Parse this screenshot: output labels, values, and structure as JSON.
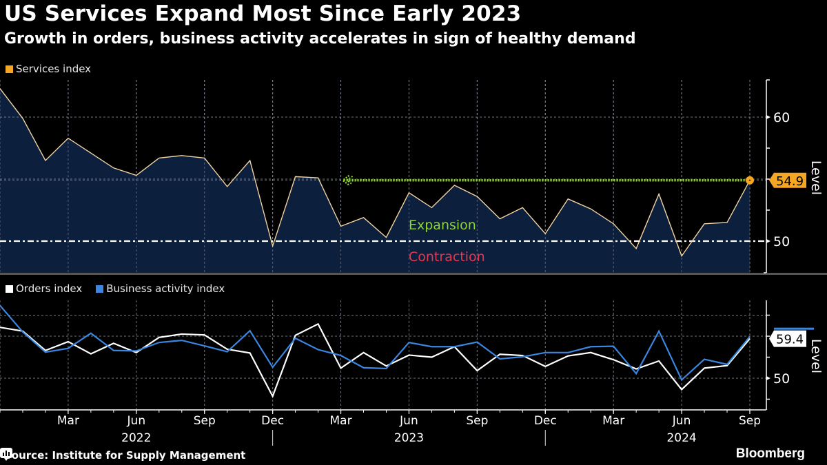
{
  "header": {
    "title": "US Services Expand Most Since Early 2023",
    "subtitle": "Growth in orders, business activity accelerates in sign of healthy demand"
  },
  "footer": {
    "source": "Source: Institute for Supply Management",
    "brand": "Bloomberg",
    "brand_icon": "bloomberg-chart-icon"
  },
  "colors": {
    "services": "#f5a623",
    "services_line": "#f2d3a3",
    "area_fill": "#0c1f3d",
    "orders": "#ffffff",
    "business": "#3a86e0",
    "expansion": "#8fd62f",
    "contraction": "#e8364f"
  },
  "chart_data": [
    {
      "type": "area",
      "title": "Services index",
      "ylabel": "Level",
      "ylim": [
        47.5,
        63.2
      ],
      "yticks": [
        50,
        60
      ],
      "legend": [
        "Services index"
      ],
      "legend_position": "top-left",
      "grid": true,
      "x": [
        "Dec 2021",
        "Jan 2022",
        "Feb 2022",
        "Mar 2022",
        "Apr 2022",
        "May 2022",
        "Jun 2022",
        "Jul 2022",
        "Aug 2022",
        "Sep 2022",
        "Oct 2022",
        "Nov 2022",
        "Dec 2022",
        "Jan 2023",
        "Feb 2023",
        "Mar 2023",
        "Apr 2023",
        "May 2023",
        "Jun 2023",
        "Jul 2023",
        "Aug 2023",
        "Sep 2023",
        "Oct 2023",
        "Nov 2023",
        "Dec 2023",
        "Jan 2024",
        "Feb 2024",
        "Mar 2024",
        "Apr 2024",
        "May 2024",
        "Jun 2024",
        "Jul 2024",
        "Aug 2024",
        "Sep 2024"
      ],
      "series": [
        {
          "name": "Services index",
          "values": [
            62.3,
            59.9,
            56.5,
            58.3,
            57.1,
            55.9,
            55.3,
            56.7,
            56.9,
            56.7,
            54.4,
            56.5,
            49.6,
            55.2,
            55.1,
            51.2,
            51.9,
            50.3,
            53.9,
            52.7,
            54.5,
            53.6,
            51.8,
            52.7,
            50.6,
            53.4,
            52.6,
            51.4,
            49.4,
            53.8,
            48.8,
            51.4,
            51.5,
            54.9
          ]
        }
      ],
      "reference_line": {
        "value": 50,
        "label_above": "Expansion",
        "label_below": "Contraction"
      },
      "highlight_line": {
        "value": 54.9,
        "from": "Mar 2023",
        "to": "Aug 2024"
      },
      "last_value_label": "54.9"
    },
    {
      "type": "line",
      "ylabel": "Level",
      "ylim": [
        43.5,
        67.5
      ],
      "yticks": [
        50
      ],
      "minor_ticks": [
        45,
        55,
        60,
        65
      ],
      "legend": [
        "Orders index",
        "Business activity index"
      ],
      "legend_position": "top-left",
      "grid": true,
      "x": [
        "Dec 2021",
        "Jan 2022",
        "Feb 2022",
        "Mar 2022",
        "Apr 2022",
        "May 2022",
        "Jun 2022",
        "Jul 2022",
        "Aug 2022",
        "Sep 2022",
        "Oct 2022",
        "Nov 2022",
        "Dec 2022",
        "Jan 2023",
        "Feb 2023",
        "Mar 2023",
        "Apr 2023",
        "May 2023",
        "Jun 2023",
        "Jul 2023",
        "Aug 2023",
        "Sep 2023",
        "Oct 2023",
        "Nov 2023",
        "Dec 2023",
        "Jan 2024",
        "Feb 2024",
        "Mar 2024",
        "Apr 2024",
        "May 2024",
        "Jun 2024",
        "Jul 2024",
        "Aug 2024",
        "Sep 2024"
      ],
      "series": [
        {
          "name": "Orders index",
          "values": [
            62.1,
            61.2,
            56.6,
            58.7,
            55.8,
            58.3,
            56.1,
            59.7,
            60.5,
            60.3,
            56.9,
            56.0,
            45.7,
            60.2,
            62.9,
            52.4,
            56.1,
            52.9,
            55.5,
            55.0,
            57.5,
            51.8,
            55.7,
            55.4,
            52.8,
            55.3,
            56.1,
            54.4,
            52.2,
            54.1,
            47.3,
            52.4,
            53.0,
            59.4
          ]
        },
        {
          "name": "Business activity index",
          "values": [
            67.3,
            61.0,
            56.2,
            57.1,
            60.7,
            56.6,
            56.5,
            58.5,
            59.0,
            57.7,
            56.3,
            61.3,
            52.6,
            59.5,
            56.8,
            55.4,
            52.5,
            52.3,
            58.5,
            57.5,
            57.5,
            58.6,
            54.6,
            55.1,
            56.1,
            56.1,
            57.5,
            57.6,
            51.1,
            61.2,
            49.6,
            54.5,
            53.3,
            59.9
          ]
        }
      ],
      "last_value_label": "59.4"
    }
  ],
  "x_axis": {
    "month_labels": [
      {
        "label": "Mar",
        "at": "Mar 2022"
      },
      {
        "label": "Jun",
        "at": "Jun 2022"
      },
      {
        "label": "Sep",
        "at": "Sep 2022"
      },
      {
        "label": "Dec",
        "at": "Dec 2022"
      },
      {
        "label": "Mar",
        "at": "Mar 2023"
      },
      {
        "label": "Jun",
        "at": "Jun 2023"
      },
      {
        "label": "Sep",
        "at": "Sep 2023"
      },
      {
        "label": "Dec",
        "at": "Dec 2023"
      },
      {
        "label": "Mar",
        "at": "Mar 2024"
      },
      {
        "label": "Jun",
        "at": "Jun 2024"
      },
      {
        "label": "Sep",
        "at": "Sep 2024"
      }
    ],
    "year_labels": [
      {
        "label": "2022",
        "at": "Jun 2022"
      },
      {
        "label": "2023",
        "at": "Jun 2023"
      },
      {
        "label": "2024",
        "at": "Jun 2024"
      }
    ],
    "year_separators": [
      "Dec 2022",
      "Dec 2023"
    ]
  }
}
